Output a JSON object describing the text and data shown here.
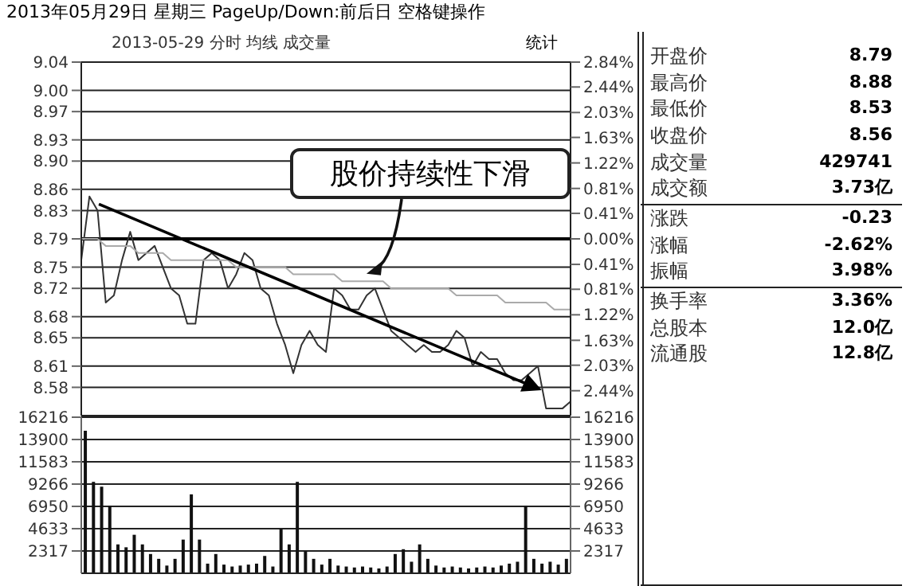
{
  "chart_data": [
    {
      "type": "line",
      "title": "2013年05月29日 星期三 PageUp/Down:前后日 空格键操作",
      "subtitle": "2013-05-29 分时 均线 成交量",
      "annotations": [
        "统计",
        "股价持续性下滑"
      ],
      "categories": [
        null,
        null,
        null,
        null,
        null,
        null,
        null,
        null,
        null,
        null,
        null,
        null,
        null,
        null,
        null,
        null,
        null,
        null,
        null,
        null,
        null,
        null,
        null,
        null,
        null,
        null,
        null,
        null,
        null,
        null,
        null,
        null,
        null,
        null,
        null,
        null,
        null,
        null,
        null,
        null,
        null,
        null,
        null,
        null,
        null,
        null,
        null,
        null,
        null,
        null,
        null,
        null,
        null,
        null,
        null,
        null,
        null,
        null,
        null,
        null,
        null
      ],
      "series": [
        {
          "color": "#333333",
          "values": [
            8.76,
            8.85,
            8.83,
            8.7,
            8.71,
            8.76,
            8.8,
            8.76,
            8.77,
            8.78,
            8.75,
            8.72,
            8.71,
            8.67,
            8.67,
            8.76,
            8.77,
            8.76,
            8.72,
            8.74,
            8.77,
            8.76,
            8.72,
            8.71,
            8.67,
            8.64,
            8.6,
            8.64,
            8.66,
            8.64,
            8.63,
            8.72,
            8.71,
            8.69,
            8.69,
            8.71,
            8.72,
            8.69,
            8.66,
            8.65,
            8.64,
            8.63,
            8.64,
            8.63,
            8.63,
            8.64,
            8.66,
            8.65,
            8.61,
            8.63,
            8.62,
            8.62,
            8.6,
            8.59,
            8.59,
            8.6,
            8.61,
            8.55,
            8.55,
            8.55,
            8.56
          ]
        },
        {
          "color": "#aaaaaa",
          "values": [
            8.79,
            8.79,
            8.79,
            8.78,
            8.78,
            8.78,
            8.78,
            8.77,
            8.77,
            8.77,
            8.77,
            8.76,
            8.76,
            8.76,
            8.76,
            8.76,
            8.76,
            8.76,
            8.76,
            8.75,
            8.75,
            8.75,
            8.75,
            8.75,
            8.75,
            8.75,
            8.74,
            8.74,
            8.74,
            8.74,
            8.74,
            8.74,
            8.73,
            8.73,
            8.73,
            8.73,
            8.73,
            8.73,
            8.72,
            8.72,
            8.72,
            8.72,
            8.72,
            8.72,
            8.72,
            8.72,
            8.71,
            8.71,
            8.71,
            8.71,
            8.71,
            8.71,
            8.7,
            8.7,
            8.7,
            8.7,
            8.7,
            8.7,
            8.69,
            8.69,
            8.69
          ]
        }
      ],
      "ylim": [
        8.54,
        9.04
      ],
      "yticks": [
        8.58,
        8.61,
        8.65,
        8.68,
        8.72,
        8.75,
        8.79,
        8.83,
        8.86,
        {
          "value": 8.9,
          "label": "8.90"
        },
        8.93,
        8.97,
        {
          "value": 9.0,
          "label": "9.00"
        },
        9.04
      ],
      "y2lim": [
        -2.84,
        2.84
      ],
      "y2ticks": [
        {
          "value": -2.44,
          "label": "2.44%"
        },
        {
          "value": -2.03,
          "label": "2.03%"
        },
        {
          "value": -1.63,
          "label": "1.63%"
        },
        {
          "value": -1.22,
          "label": "1.22%"
        },
        {
          "value": -0.81,
          "label": "0.81%"
        },
        {
          "value": -0.41,
          "label": "0.41%"
        },
        {
          "value": 0,
          "label": "0.00%"
        },
        {
          "value": 0.41,
          "label": "0.41%"
        },
        {
          "value": 0.81,
          "label": "0.81%"
        },
        {
          "value": 1.22,
          "label": "1.22%"
        },
        {
          "value": 1.63,
          "label": "1.63%"
        },
        {
          "value": 2.03,
          "label": "2.03%"
        },
        {
          "value": 2.44,
          "label": "2.44%"
        },
        {
          "value": 2.84,
          "label": "2.84%"
        }
      ],
      "ref_lines": [
        {
          "axis": "y",
          "value": 8.79,
          "color": "#000000"
        }
      ],
      "grid": "y",
      "tick_labels": "y",
      "line_style": "solid"
    },
    {
      "type": "bar",
      "categories": [
        null,
        null,
        null,
        null,
        null,
        null,
        null,
        null,
        null,
        null,
        null,
        null,
        null,
        null,
        null,
        null,
        null,
        null,
        null,
        null,
        null,
        null,
        null,
        null,
        null,
        null,
        null,
        null,
        null,
        null,
        null,
        null,
        null,
        null,
        null,
        null,
        null,
        null,
        null,
        null,
        null,
        null,
        null,
        null,
        null,
        null,
        null,
        null,
        null,
        null,
        null,
        null,
        null,
        null,
        null,
        null,
        null,
        null,
        null,
        null
      ],
      "values": [
        14800,
        9500,
        9000,
        7000,
        3000,
        2700,
        4000,
        3000,
        2000,
        1500,
        800,
        1500,
        3500,
        8200,
        3500,
        1000,
        2000,
        900,
        700,
        800,
        900,
        1000,
        1800,
        700,
        4600,
        3000,
        9500,
        2300,
        1500,
        900,
        1500,
        800,
        700,
        600,
        700,
        600,
        500,
        700,
        2000,
        2500,
        1200,
        3000,
        1500,
        800,
        600,
        700,
        600,
        500,
        600,
        700,
        600,
        800,
        1000,
        1200,
        7000,
        1500,
        1000,
        1200,
        900,
        1500
      ],
      "color": "#111111",
      "ylim": [
        0,
        16216
      ],
      "yticks": [
        2317,
        4633,
        6950,
        9266,
        11583,
        13900,
        16216
      ],
      "y2lim": [
        0,
        16216
      ],
      "y2ticks": [
        2317,
        4633,
        6950,
        9266,
        11583,
        13900,
        16216
      ],
      "grid": "y",
      "tick_labels": "y"
    },
    {
      "type": "other",
      "annotations": [
        "开盘价",
        "8.79",
        "最高价",
        "8.88",
        "最低价",
        "8.53",
        "收盘价",
        "8.56",
        "成交量",
        "429741",
        "成交额",
        "3.73亿"
      ]
    },
    {
      "type": "other",
      "annotations": [
        "涨跌",
        "-0.23",
        "涨幅",
        "-2.62%",
        "振幅",
        "3.98%"
      ]
    },
    {
      "type": "other",
      "annotations": [
        "换手率",
        "3.36%",
        "总股本",
        "12.0亿",
        "流通股",
        "12.8亿"
      ]
    }
  ]
}
